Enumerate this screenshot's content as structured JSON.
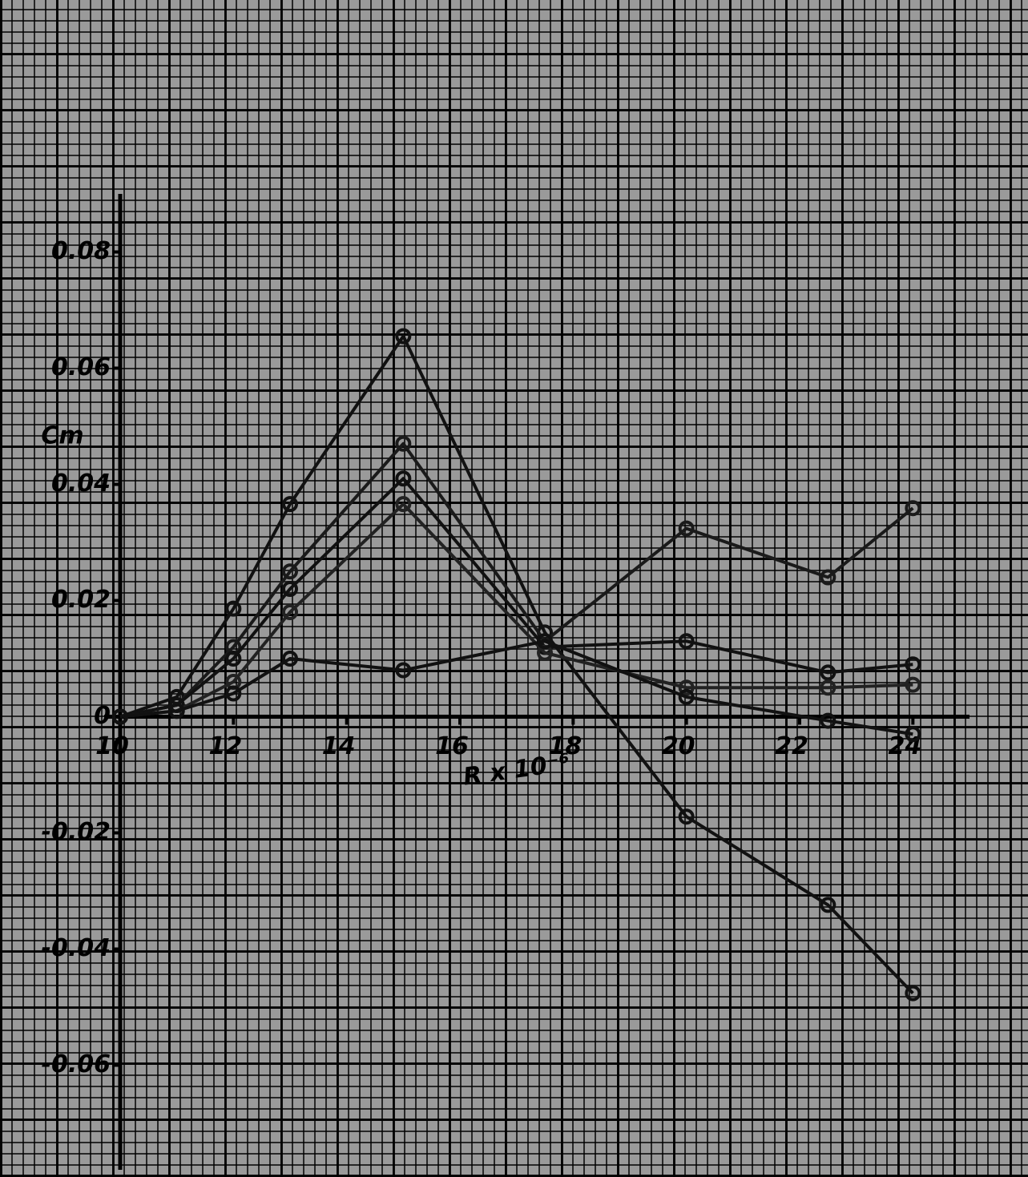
{
  "chart_data": {
    "type": "line",
    "y_label": "Cm",
    "x_label": "R x 10⁻⁶",
    "xlim": [
      10,
      25
    ],
    "xticks": [
      10,
      12,
      14,
      16,
      18,
      20,
      22,
      24
    ],
    "ylim": [
      -0.078,
      0.09
    ],
    "yticks": [
      -0.06,
      -0.04,
      -0.02,
      0,
      0.02,
      0.04,
      0.06,
      0.08
    ],
    "x": [
      10,
      11,
      12,
      13,
      15,
      17.5,
      20,
      22.5,
      24
    ],
    "series": [
      {
        "color": "#111111",
        "values": [
          0,
          0.0034,
          0.0186,
          0.0366,
          0.0655,
          0.0145,
          -0.0172,
          -0.0324,
          -0.0476
        ]
      },
      {
        "color": "#1a1a1a",
        "values": [
          0,
          0.002,
          0.012,
          0.025,
          0.047,
          0.013,
          0.0324,
          0.024,
          0.0359
        ]
      },
      {
        "color": "#111111",
        "values": [
          0,
          0.002,
          0.01,
          0.022,
          0.041,
          0.012,
          0.013,
          0.0076,
          0.009
        ]
      },
      {
        "color": "#222222",
        "values": [
          0,
          0.001,
          0.006,
          0.018,
          0.0366,
          0.011,
          0.005,
          0.005,
          0.0055
        ]
      },
      {
        "color": "#111111",
        "values": [
          0,
          0.001,
          0.004,
          0.01,
          0.008,
          0.013,
          0.0034,
          -0.0007,
          -0.003
        ]
      }
    ]
  }
}
